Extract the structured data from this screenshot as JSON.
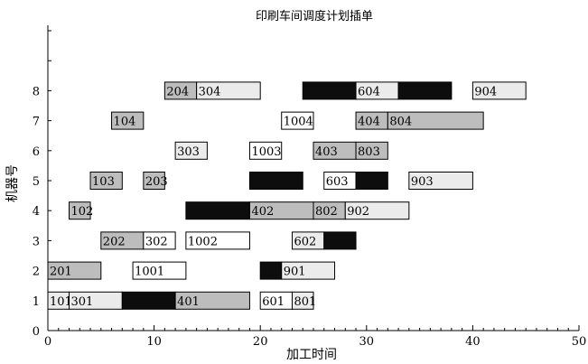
{
  "chart_data": {
    "type": "gantt",
    "title": "印刷车间调度计划插单",
    "xlabel": "加工时间",
    "ylabel": "机器号",
    "xlim": [
      0,
      50
    ],
    "ylim": [
      0,
      10
    ],
    "xticks": [
      "0",
      "10",
      "20",
      "30",
      "40",
      "50"
    ],
    "yticks": [
      "0",
      "1",
      "2",
      "3",
      "4",
      "5",
      "6",
      "7",
      "8"
    ],
    "fill_colors": {
      "white": "#ffffff",
      "light": "#ebebeb",
      "gray": "#bdbdbd",
      "black": "#0d0d0d"
    },
    "tasks": [
      {
        "machine": 1,
        "start": 0,
        "end": 2,
        "label": "101",
        "fill": "light"
      },
      {
        "machine": 1,
        "start": 2,
        "end": 7,
        "label": "301",
        "fill": "light"
      },
      {
        "machine": 1,
        "start": 7,
        "end": 12,
        "label": "",
        "fill": "black"
      },
      {
        "machine": 1,
        "start": 12,
        "end": 19,
        "label": "401",
        "fill": "gray"
      },
      {
        "machine": 1,
        "start": 20,
        "end": 23,
        "label": "601",
        "fill": "white"
      },
      {
        "machine": 1,
        "start": 23,
        "end": 25,
        "label": "801",
        "fill": "light"
      },
      {
        "machine": 2,
        "start": 0,
        "end": 5,
        "label": "201",
        "fill": "gray"
      },
      {
        "machine": 2,
        "start": 8,
        "end": 13,
        "label": "1001",
        "fill": "white"
      },
      {
        "machine": 2,
        "start": 20,
        "end": 22,
        "label": "",
        "fill": "black"
      },
      {
        "machine": 2,
        "start": 22,
        "end": 27,
        "label": "901",
        "fill": "light"
      },
      {
        "machine": 3,
        "start": 5,
        "end": 9,
        "label": "202",
        "fill": "gray"
      },
      {
        "machine": 3,
        "start": 9,
        "end": 12,
        "label": "302",
        "fill": "white"
      },
      {
        "machine": 3,
        "start": 13,
        "end": 19,
        "label": "1002",
        "fill": "white"
      },
      {
        "machine": 3,
        "start": 23,
        "end": 26,
        "label": "602",
        "fill": "light"
      },
      {
        "machine": 3,
        "start": 26,
        "end": 29,
        "label": "",
        "fill": "black"
      },
      {
        "machine": 4,
        "start": 2,
        "end": 4,
        "label": "102",
        "fill": "gray"
      },
      {
        "machine": 4,
        "start": 13,
        "end": 19,
        "label": "",
        "fill": "black"
      },
      {
        "machine": 4,
        "start": 19,
        "end": 25,
        "label": "402",
        "fill": "gray"
      },
      {
        "machine": 4,
        "start": 25,
        "end": 28,
        "label": "802",
        "fill": "gray"
      },
      {
        "machine": 4,
        "start": 28,
        "end": 34,
        "label": "902",
        "fill": "light"
      },
      {
        "machine": 5,
        "start": 4,
        "end": 7,
        "label": "103",
        "fill": "gray"
      },
      {
        "machine": 5,
        "start": 9,
        "end": 11,
        "label": "203",
        "fill": "gray"
      },
      {
        "machine": 5,
        "start": 19,
        "end": 24,
        "label": "",
        "fill": "black"
      },
      {
        "machine": 5,
        "start": 26,
        "end": 29,
        "label": "603",
        "fill": "white"
      },
      {
        "machine": 5,
        "start": 29,
        "end": 32,
        "label": "",
        "fill": "black"
      },
      {
        "machine": 5,
        "start": 34,
        "end": 40,
        "label": "903",
        "fill": "light"
      },
      {
        "machine": 6,
        "start": 12,
        "end": 15,
        "label": "303",
        "fill": "light"
      },
      {
        "machine": 6,
        "start": 19,
        "end": 22,
        "label": "1003",
        "fill": "white"
      },
      {
        "machine": 6,
        "start": 25,
        "end": 29,
        "label": "403",
        "fill": "gray"
      },
      {
        "machine": 6,
        "start": 29,
        "end": 32,
        "label": "803",
        "fill": "gray"
      },
      {
        "machine": 7,
        "start": 6,
        "end": 9,
        "label": "104",
        "fill": "gray"
      },
      {
        "machine": 7,
        "start": 22,
        "end": 25,
        "label": "1004",
        "fill": "white"
      },
      {
        "machine": 7,
        "start": 29,
        "end": 32,
        "label": "404",
        "fill": "gray"
      },
      {
        "machine": 7,
        "start": 32,
        "end": 41,
        "label": "804",
        "fill": "gray"
      },
      {
        "machine": 8,
        "start": 11,
        "end": 14,
        "label": "204",
        "fill": "gray"
      },
      {
        "machine": 8,
        "start": 14,
        "end": 20,
        "label": "304",
        "fill": "light"
      },
      {
        "machine": 8,
        "start": 24,
        "end": 29,
        "label": "",
        "fill": "black"
      },
      {
        "machine": 8,
        "start": 29,
        "end": 33,
        "label": "604",
        "fill": "light"
      },
      {
        "machine": 8,
        "start": 33,
        "end": 38,
        "label": "",
        "fill": "black"
      },
      {
        "machine": 8,
        "start": 40,
        "end": 45,
        "label": "904",
        "fill": "light"
      }
    ]
  }
}
